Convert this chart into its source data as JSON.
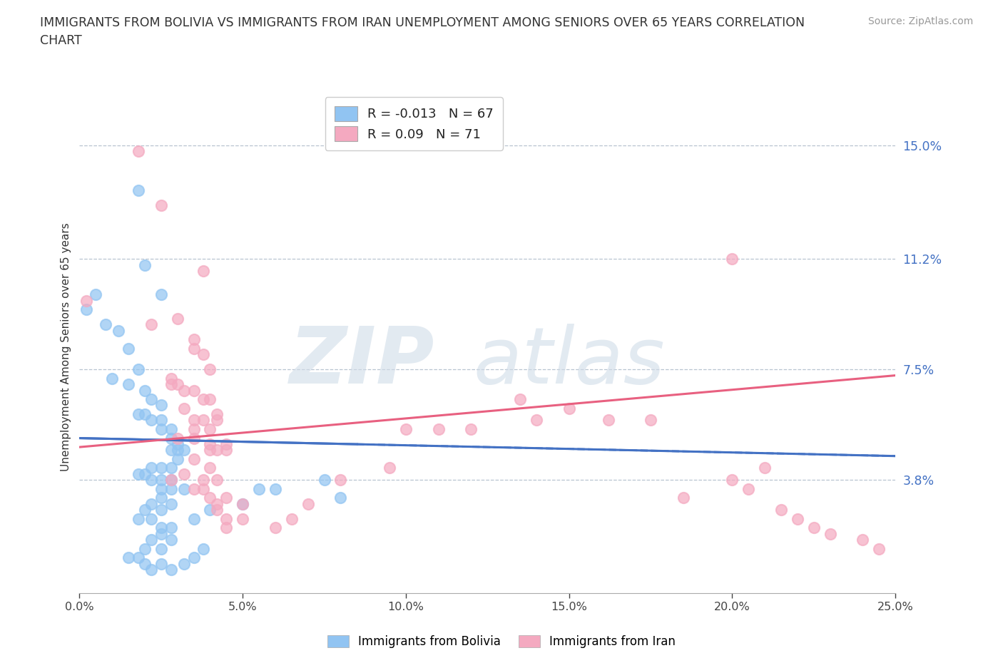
{
  "title": "IMMIGRANTS FROM BOLIVIA VS IMMIGRANTS FROM IRAN UNEMPLOYMENT AMONG SENIORS OVER 65 YEARS CORRELATION\nCHART",
  "source": "Source: ZipAtlas.com",
  "xlabel": "",
  "ylabel": "Unemployment Among Seniors over 65 years",
  "xlim": [
    0.0,
    0.25
  ],
  "ylim": [
    0.0,
    0.165
  ],
  "xtick_vals": [
    0.0,
    0.05,
    0.1,
    0.15,
    0.2,
    0.25
  ],
  "xtick_labels": [
    "0.0%",
    "5.0%",
    "10.0%",
    "15.0%",
    "20.0%",
    "25.0%"
  ],
  "ytick_vals": [
    0.038,
    0.075,
    0.112,
    0.15
  ],
  "ytick_labels": [
    "3.8%",
    "7.5%",
    "11.2%",
    "15.0%"
  ],
  "bolivia_R": -0.013,
  "bolivia_N": 67,
  "iran_R": 0.09,
  "iran_N": 71,
  "bolivia_color": "#91c4f2",
  "iran_color": "#f4a9c0",
  "bolivia_line_color": "#4472c4",
  "iran_line_color": "#e86080",
  "watermark_zip": "ZIP",
  "watermark_atlas": "atlas",
  "bolivia_trend_x": [
    0.0,
    0.25
  ],
  "bolivia_trend_y": [
    0.052,
    0.046
  ],
  "iran_trend_x": [
    0.0,
    0.25
  ],
  "iran_trend_y": [
    0.049,
    0.073
  ],
  "bolivia_scatter": [
    [
      0.005,
      0.1
    ],
    [
      0.018,
      0.135
    ],
    [
      0.02,
      0.11
    ],
    [
      0.025,
      0.1
    ],
    [
      0.002,
      0.095
    ],
    [
      0.008,
      0.09
    ],
    [
      0.012,
      0.088
    ],
    [
      0.015,
      0.082
    ],
    [
      0.018,
      0.075
    ],
    [
      0.01,
      0.072
    ],
    [
      0.015,
      0.07
    ],
    [
      0.02,
      0.068
    ],
    [
      0.022,
      0.065
    ],
    [
      0.025,
      0.063
    ],
    [
      0.018,
      0.06
    ],
    [
      0.02,
      0.06
    ],
    [
      0.022,
      0.058
    ],
    [
      0.025,
      0.055
    ],
    [
      0.025,
      0.058
    ],
    [
      0.028,
      0.055
    ],
    [
      0.028,
      0.052
    ],
    [
      0.03,
      0.05
    ],
    [
      0.028,
      0.048
    ],
    [
      0.03,
      0.048
    ],
    [
      0.032,
      0.048
    ],
    [
      0.03,
      0.045
    ],
    [
      0.028,
      0.042
    ],
    [
      0.025,
      0.042
    ],
    [
      0.022,
      0.042
    ],
    [
      0.02,
      0.04
    ],
    [
      0.018,
      0.04
    ],
    [
      0.022,
      0.038
    ],
    [
      0.025,
      0.038
    ],
    [
      0.028,
      0.038
    ],
    [
      0.025,
      0.035
    ],
    [
      0.028,
      0.035
    ],
    [
      0.032,
      0.035
    ],
    [
      0.025,
      0.032
    ],
    [
      0.022,
      0.03
    ],
    [
      0.028,
      0.03
    ],
    [
      0.025,
      0.028
    ],
    [
      0.02,
      0.028
    ],
    [
      0.018,
      0.025
    ],
    [
      0.022,
      0.025
    ],
    [
      0.025,
      0.022
    ],
    [
      0.028,
      0.022
    ],
    [
      0.025,
      0.02
    ],
    [
      0.022,
      0.018
    ],
    [
      0.028,
      0.018
    ],
    [
      0.025,
      0.015
    ],
    [
      0.02,
      0.015
    ],
    [
      0.018,
      0.012
    ],
    [
      0.015,
      0.012
    ],
    [
      0.02,
      0.01
    ],
    [
      0.025,
      0.01
    ],
    [
      0.022,
      0.008
    ],
    [
      0.028,
      0.008
    ],
    [
      0.032,
      0.01
    ],
    [
      0.035,
      0.012
    ],
    [
      0.038,
      0.015
    ],
    [
      0.035,
      0.025
    ],
    [
      0.04,
      0.028
    ],
    [
      0.05,
      0.03
    ],
    [
      0.055,
      0.035
    ],
    [
      0.06,
      0.035
    ],
    [
      0.075,
      0.038
    ],
    [
      0.08,
      0.032
    ]
  ],
  "iran_scatter": [
    [
      0.018,
      0.148
    ],
    [
      0.025,
      0.13
    ],
    [
      0.038,
      0.108
    ],
    [
      0.002,
      0.098
    ],
    [
      0.03,
      0.092
    ],
    [
      0.022,
      0.09
    ],
    [
      0.035,
      0.085
    ],
    [
      0.035,
      0.082
    ],
    [
      0.038,
      0.08
    ],
    [
      0.04,
      0.075
    ],
    [
      0.028,
      0.072
    ],
    [
      0.028,
      0.07
    ],
    [
      0.03,
      0.07
    ],
    [
      0.032,
      0.068
    ],
    [
      0.035,
      0.068
    ],
    [
      0.038,
      0.065
    ],
    [
      0.04,
      0.065
    ],
    [
      0.032,
      0.062
    ],
    [
      0.042,
      0.06
    ],
    [
      0.035,
      0.058
    ],
    [
      0.038,
      0.058
    ],
    [
      0.042,
      0.058
    ],
    [
      0.035,
      0.055
    ],
    [
      0.04,
      0.055
    ],
    [
      0.03,
      0.052
    ],
    [
      0.035,
      0.052
    ],
    [
      0.04,
      0.05
    ],
    [
      0.045,
      0.05
    ],
    [
      0.04,
      0.048
    ],
    [
      0.042,
      0.048
    ],
    [
      0.045,
      0.048
    ],
    [
      0.035,
      0.045
    ],
    [
      0.04,
      0.042
    ],
    [
      0.032,
      0.04
    ],
    [
      0.028,
      0.038
    ],
    [
      0.038,
      0.038
    ],
    [
      0.042,
      0.038
    ],
    [
      0.035,
      0.035
    ],
    [
      0.038,
      0.035
    ],
    [
      0.04,
      0.032
    ],
    [
      0.045,
      0.032
    ],
    [
      0.042,
      0.03
    ],
    [
      0.05,
      0.03
    ],
    [
      0.042,
      0.028
    ],
    [
      0.045,
      0.025
    ],
    [
      0.05,
      0.025
    ],
    [
      0.045,
      0.022
    ],
    [
      0.06,
      0.022
    ],
    [
      0.065,
      0.025
    ],
    [
      0.07,
      0.03
    ],
    [
      0.08,
      0.038
    ],
    [
      0.095,
      0.042
    ],
    [
      0.11,
      0.055
    ],
    [
      0.12,
      0.055
    ],
    [
      0.1,
      0.055
    ],
    [
      0.135,
      0.065
    ],
    [
      0.14,
      0.058
    ],
    [
      0.15,
      0.062
    ],
    [
      0.162,
      0.058
    ],
    [
      0.2,
      0.112
    ],
    [
      0.175,
      0.058
    ],
    [
      0.185,
      0.032
    ],
    [
      0.2,
      0.038
    ],
    [
      0.205,
      0.035
    ],
    [
      0.21,
      0.042
    ],
    [
      0.215,
      0.028
    ],
    [
      0.22,
      0.025
    ],
    [
      0.225,
      0.022
    ],
    [
      0.23,
      0.02
    ],
    [
      0.24,
      0.018
    ],
    [
      0.245,
      0.015
    ]
  ]
}
